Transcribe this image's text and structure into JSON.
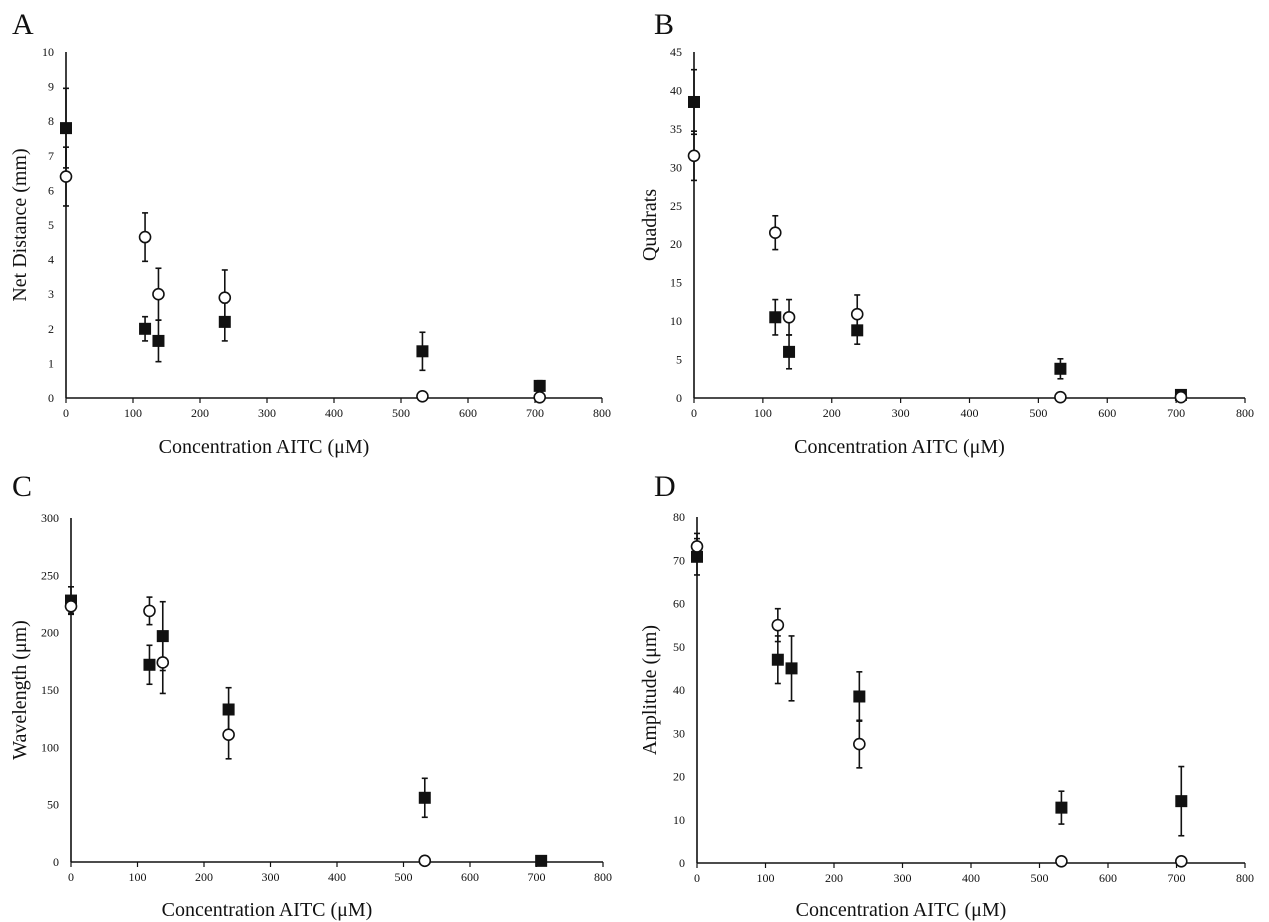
{
  "chart_data": [
    {
      "type": "scatter",
      "panel_label": "A",
      "xlabel": "Concentration AITC (μM)",
      "ylabel": "Net Distance (mm)",
      "xlim": [
        0,
        800
      ],
      "ylim": [
        0,
        10
      ],
      "xticks": [
        0,
        100,
        200,
        300,
        400,
        500,
        600,
        700,
        800
      ],
      "yticks": [
        0,
        1,
        2,
        3,
        4,
        5,
        6,
        7,
        8,
        9,
        10
      ],
      "grid": false,
      "legend": "none",
      "series": [
        {
          "marker": "square-filled",
          "points": [
            {
              "x": 0,
              "y": 7.8,
              "err": 1.15
            },
            {
              "x": 118,
              "y": 2.0,
              "err": 0.35
            },
            {
              "x": 138,
              "y": 1.65,
              "err": 0.6
            },
            {
              "x": 237,
              "y": 2.2,
              "err": 0.55
            },
            {
              "x": 532,
              "y": 1.35,
              "err": 0.55
            },
            {
              "x": 707,
              "y": 0.35,
              "err": 0.15
            }
          ]
        },
        {
          "marker": "circle-open",
          "points": [
            {
              "x": 0,
              "y": 6.4,
              "err": 0.85
            },
            {
              "x": 118,
              "y": 4.65,
              "err": 0.7
            },
            {
              "x": 138,
              "y": 3.0,
              "err": 0.75
            },
            {
              "x": 237,
              "y": 2.9,
              "err": 0.8
            },
            {
              "x": 532,
              "y": 0.05,
              "err": 0
            },
            {
              "x": 707,
              "y": 0.02,
              "err": 0
            }
          ]
        }
      ]
    },
    {
      "type": "scatter",
      "panel_label": "B",
      "xlabel": "Concentration AITC (μM)",
      "ylabel": "Quadrats",
      "xlim": [
        0,
        800
      ],
      "ylim": [
        0,
        45
      ],
      "xticks": [
        0,
        100,
        200,
        300,
        400,
        500,
        600,
        700,
        800
      ],
      "yticks": [
        0,
        5,
        10,
        15,
        20,
        25,
        30,
        35,
        40,
        45
      ],
      "grid": false,
      "legend": "none",
      "series": [
        {
          "marker": "square-filled",
          "points": [
            {
              "x": 0,
              "y": 38.5,
              "err": 4.2
            },
            {
              "x": 118,
              "y": 10.5,
              "err": 2.3
            },
            {
              "x": 138,
              "y": 6.0,
              "err": 2.2
            },
            {
              "x": 237,
              "y": 8.8,
              "err": 1.8
            },
            {
              "x": 532,
              "y": 3.8,
              "err": 1.3
            },
            {
              "x": 707,
              "y": 0.4,
              "err": 0.2
            }
          ]
        },
        {
          "marker": "circle-open",
          "points": [
            {
              "x": 0,
              "y": 31.5,
              "err": 3.2
            },
            {
              "x": 118,
              "y": 21.5,
              "err": 2.2
            },
            {
              "x": 138,
              "y": 10.5,
              "err": 2.3
            },
            {
              "x": 237,
              "y": 10.9,
              "err": 2.5
            },
            {
              "x": 532,
              "y": 0.1,
              "err": 0
            },
            {
              "x": 707,
              "y": 0.1,
              "err": 0
            }
          ]
        }
      ]
    },
    {
      "type": "scatter",
      "panel_label": "C",
      "xlabel": "Concentration AITC (μM)",
      "ylabel": "Wavelength (μm)",
      "xlim": [
        0,
        800
      ],
      "ylim": [
        0,
        300
      ],
      "xticks": [
        0,
        100,
        200,
        300,
        400,
        500,
        600,
        700,
        800
      ],
      "yticks": [
        0,
        50,
        100,
        150,
        200,
        250,
        300
      ],
      "grid": false,
      "legend": "none",
      "series": [
        {
          "marker": "square-filled",
          "points": [
            {
              "x": 0,
              "y": 228,
              "err": 12
            },
            {
              "x": 118,
              "y": 172,
              "err": 17
            },
            {
              "x": 138,
              "y": 197,
              "err": 30
            },
            {
              "x": 237,
              "y": 133,
              "err": 19
            },
            {
              "x": 532,
              "y": 56,
              "err": 17
            },
            {
              "x": 707,
              "y": 1,
              "err": 0
            }
          ]
        },
        {
          "marker": "circle-open",
          "points": [
            {
              "x": 0,
              "y": 223,
              "err": 6
            },
            {
              "x": 118,
              "y": 219,
              "err": 12
            },
            {
              "x": 138,
              "y": 174,
              "err": 27
            },
            {
              "x": 237,
              "y": 111,
              "err": 21
            },
            {
              "x": 532,
              "y": 1,
              "err": 0
            }
          ]
        }
      ]
    },
    {
      "type": "scatter",
      "panel_label": "D",
      "xlabel": "Concentration AITC (μM)",
      "ylabel": "Amplitude (μm)",
      "xlim": [
        0,
        800
      ],
      "ylim": [
        0,
        80
      ],
      "xticks": [
        0,
        100,
        200,
        300,
        400,
        500,
        600,
        700,
        800
      ],
      "yticks": [
        0,
        10,
        20,
        30,
        40,
        50,
        60,
        70,
        80
      ],
      "grid": false,
      "legend": "none",
      "series": [
        {
          "marker": "square-filled",
          "points": [
            {
              "x": 0,
              "y": 70.8,
              "err": 4.2
            },
            {
              "x": 118,
              "y": 47,
              "err": 5.5
            },
            {
              "x": 138,
              "y": 45,
              "err": 7.5
            },
            {
              "x": 237,
              "y": 38.5,
              "err": 5.7
            },
            {
              "x": 532,
              "y": 12.8,
              "err": 3.8
            },
            {
              "x": 707,
              "y": 14.3,
              "err": 8
            }
          ]
        },
        {
          "marker": "circle-open",
          "points": [
            {
              "x": 0,
              "y": 73.2,
              "err": 3
            },
            {
              "x": 118,
              "y": 55,
              "err": 3.8
            },
            {
              "x": 237,
              "y": 27.5,
              "err": 5.5
            },
            {
              "x": 532,
              "y": 0.4,
              "err": 0
            },
            {
              "x": 707,
              "y": 0.4,
              "err": 0
            }
          ]
        }
      ]
    }
  ]
}
